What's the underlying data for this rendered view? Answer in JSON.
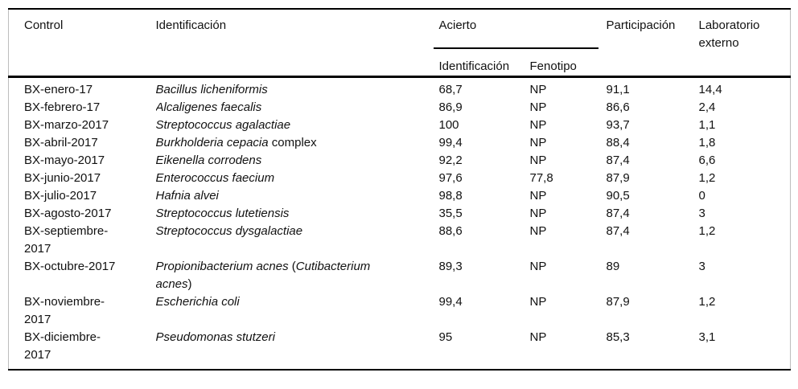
{
  "table": {
    "columns": {
      "control": "Control",
      "identificacion": "Identificación",
      "acierto": "Acierto",
      "acierto_sub_identificacion": "Identificación",
      "acierto_sub_fenotipo": "Fenotipo",
      "participacion": "Participación",
      "laboratorio_externo": "Laboratorio externo"
    },
    "rows": [
      {
        "control": "BX-enero-17",
        "identificacion": [
          {
            "t": "Bacillus licheniformis",
            "i": true
          }
        ],
        "acierto_identificacion": "68,7",
        "fenotipo": "NP",
        "participacion": "91,1",
        "laboratorio_externo": "14,4"
      },
      {
        "control": "BX-febrero-17",
        "identificacion": [
          {
            "t": "Alcaligenes faecalis",
            "i": true
          }
        ],
        "acierto_identificacion": "86,9",
        "fenotipo": "NP",
        "participacion": "86,6",
        "laboratorio_externo": "2,4"
      },
      {
        "control": "BX-marzo-2017",
        "identificacion": [
          {
            "t": "Streptococcus agalactiae",
            "i": true
          }
        ],
        "acierto_identificacion": "100",
        "fenotipo": "NP",
        "participacion": "93,7",
        "laboratorio_externo": "1,1"
      },
      {
        "control": "BX-abril-2017",
        "identificacion": [
          {
            "t": "Burkholderia cepacia",
            "i": true
          },
          {
            "t": " complex",
            "i": false
          }
        ],
        "acierto_identificacion": "99,4",
        "fenotipo": "NP",
        "participacion": "88,4",
        "laboratorio_externo": "1,8"
      },
      {
        "control": "BX-mayo-2017",
        "identificacion": [
          {
            "t": "Eikenella corrodens",
            "i": true
          }
        ],
        "acierto_identificacion": "92,2",
        "fenotipo": "NP",
        "participacion": "87,4",
        "laboratorio_externo": "6,6"
      },
      {
        "control": "BX-junio-2017",
        "identificacion": [
          {
            "t": "Enterococcus faecium",
            "i": true
          }
        ],
        "acierto_identificacion": "97,6",
        "fenotipo": "77,8",
        "participacion": "87,9",
        "laboratorio_externo": "1,2"
      },
      {
        "control": "BX-julio-2017",
        "identificacion": [
          {
            "t": "Hafnia alvei",
            "i": true
          }
        ],
        "acierto_identificacion": "98,8",
        "fenotipo": "NP",
        "participacion": "90,5",
        "laboratorio_externo": "0"
      },
      {
        "control": "BX-agosto-2017",
        "identificacion": [
          {
            "t": "Streptococcus lutetiensis",
            "i": true
          }
        ],
        "acierto_identificacion": "35,5",
        "fenotipo": "NP",
        "participacion": "87,4",
        "laboratorio_externo": "3"
      },
      {
        "control": "BX-septiembre-2017",
        "identificacion": [
          {
            "t": "Streptococcus dysgalactiae",
            "i": true
          }
        ],
        "acierto_identificacion": "88,6",
        "fenotipo": "NP",
        "participacion": "87,4",
        "laboratorio_externo": "1,2"
      },
      {
        "control": "BX-octubre-2017",
        "identificacion": [
          {
            "t": "Propionibacterium acnes",
            "i": true
          },
          {
            "t": " (",
            "i": false
          },
          {
            "t": "Cutibacterium acnes",
            "i": true
          },
          {
            "t": ")",
            "i": false
          }
        ],
        "acierto_identificacion": "89,3",
        "fenotipo": "NP",
        "participacion": "89",
        "laboratorio_externo": "3"
      },
      {
        "control": "BX-noviembre-2017",
        "identificacion": [
          {
            "t": "Escherichia coli",
            "i": true
          }
        ],
        "acierto_identificacion": "99,4",
        "fenotipo": "NP",
        "participacion": "87,9",
        "laboratorio_externo": "1,2"
      },
      {
        "control": "BX-diciembre-2017",
        "identificacion": [
          {
            "t": "Pseudomonas stutzeri",
            "i": true
          }
        ],
        "acierto_identificacion": "95",
        "fenotipo": "NP",
        "participacion": "85,3",
        "laboratorio_externo": "3,1"
      }
    ]
  },
  "colors": {
    "rule_dark": "#000000",
    "rule_light": "#bdbdbd",
    "text": "#111111",
    "background": "#ffffff"
  }
}
